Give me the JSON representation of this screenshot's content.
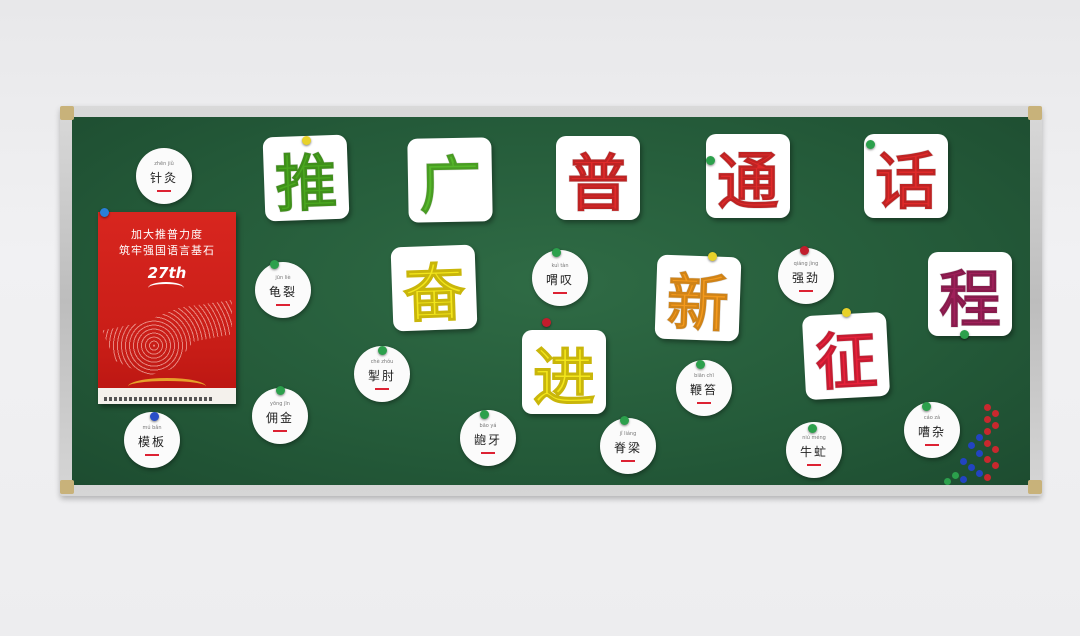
{
  "title_chars": [
    {
      "char": "推",
      "color": "#4aa81f"
    },
    {
      "char": "广",
      "color": "#56b82a"
    },
    {
      "char": "普",
      "color": "#e02a2a"
    },
    {
      "char": "通",
      "color": "#e02a2a"
    },
    {
      "char": "话",
      "color": "#e02a2a"
    }
  ],
  "slogan_chars": [
    {
      "char": "奋",
      "color": "#f3e61c"
    },
    {
      "char": "进",
      "color": "#f3e61c"
    },
    {
      "char": "新",
      "color": "#f59a1c"
    },
    {
      "char": "征",
      "color": "#e8213a"
    },
    {
      "char": "程",
      "color": "#a0205a"
    }
  ],
  "word_cards": [
    {
      "word": "针灸"
    },
    {
      "word": "龟裂"
    },
    {
      "word": "掣肘"
    },
    {
      "word": "佣金"
    },
    {
      "word": "模板"
    },
    {
      "word": "喟叹"
    },
    {
      "word": "龅牙"
    },
    {
      "word": "脊梁"
    },
    {
      "word": "鞭笞"
    },
    {
      "word": "强劲"
    },
    {
      "word": "牛虻"
    },
    {
      "word": "嘈杂"
    }
  ],
  "poster": {
    "line1": "加大推普力度",
    "line2": "筑牢强国语言基石",
    "number": "27th"
  },
  "colors": {
    "board": "#245a39",
    "frame": "#c9c9c9",
    "poster_red": "#d8261f"
  }
}
